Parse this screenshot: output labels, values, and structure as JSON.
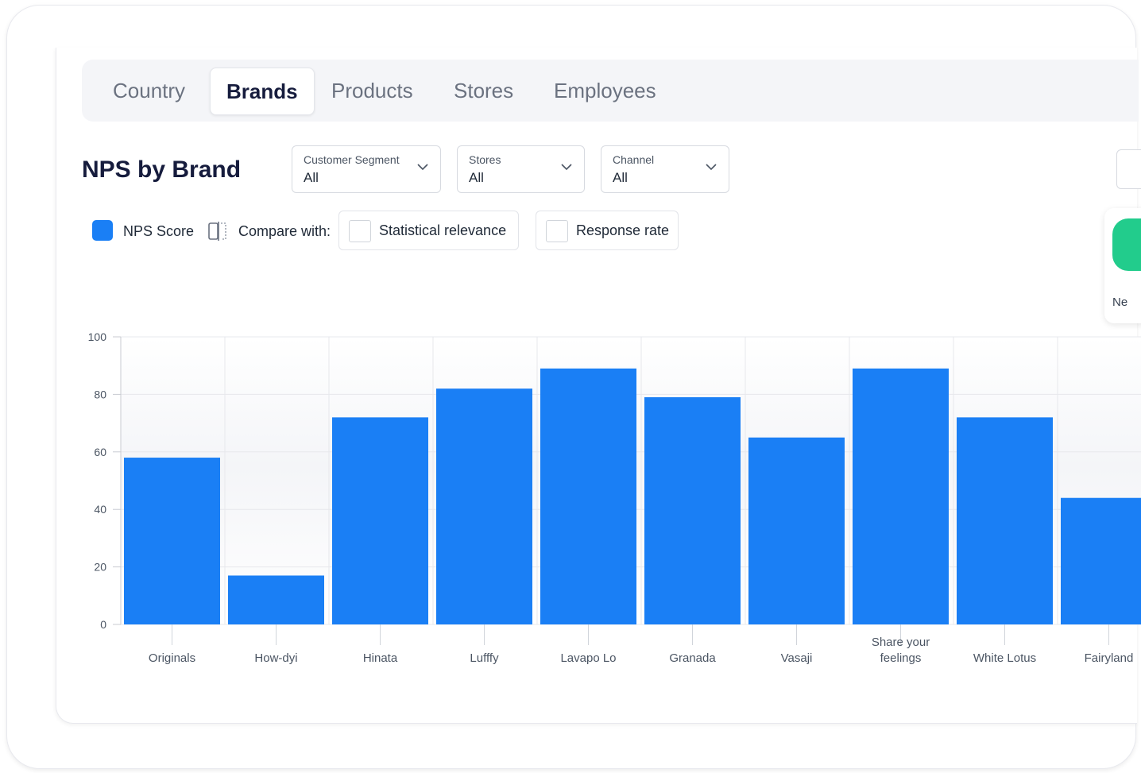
{
  "tabs": [
    {
      "label": "Country",
      "active": false
    },
    {
      "label": "Brands",
      "active": true
    },
    {
      "label": "Products",
      "active": false
    },
    {
      "label": "Stores",
      "active": false
    },
    {
      "label": "Employees",
      "active": false
    }
  ],
  "page_title": "NPS by Brand",
  "filters": [
    {
      "label": "Customer Segment",
      "value": "All"
    },
    {
      "label": "Stores",
      "value": "All"
    },
    {
      "label": "Channel",
      "value": "All"
    }
  ],
  "legend": {
    "series_label": "NPS Score",
    "series_color": "#1a7ff5",
    "compare_label": "Compare with:"
  },
  "compare_options": [
    {
      "label": "Statistical relevance",
      "checked": false
    },
    {
      "label": "Response rate",
      "checked": false
    }
  ],
  "side_panel": {
    "text": "Ne",
    "accent_color": "#22cc8c"
  },
  "chart_data": {
    "type": "bar",
    "title": "",
    "xlabel": "",
    "ylabel": "",
    "categories": [
      "Originals",
      "How-dyi",
      "Hinata",
      "Lufffy",
      "Lavapo Lo",
      "Granada",
      "Vasaji",
      "Share your feelings",
      "White Lotus",
      "Fairyland"
    ],
    "values": [
      58,
      17,
      72,
      82,
      89,
      79,
      65,
      89,
      72,
      44
    ],
    "ylim": [
      0,
      100
    ],
    "yticks": [
      0,
      20,
      40,
      60,
      80,
      100
    ],
    "grid": true,
    "bar_color": "#1a7ff5"
  }
}
